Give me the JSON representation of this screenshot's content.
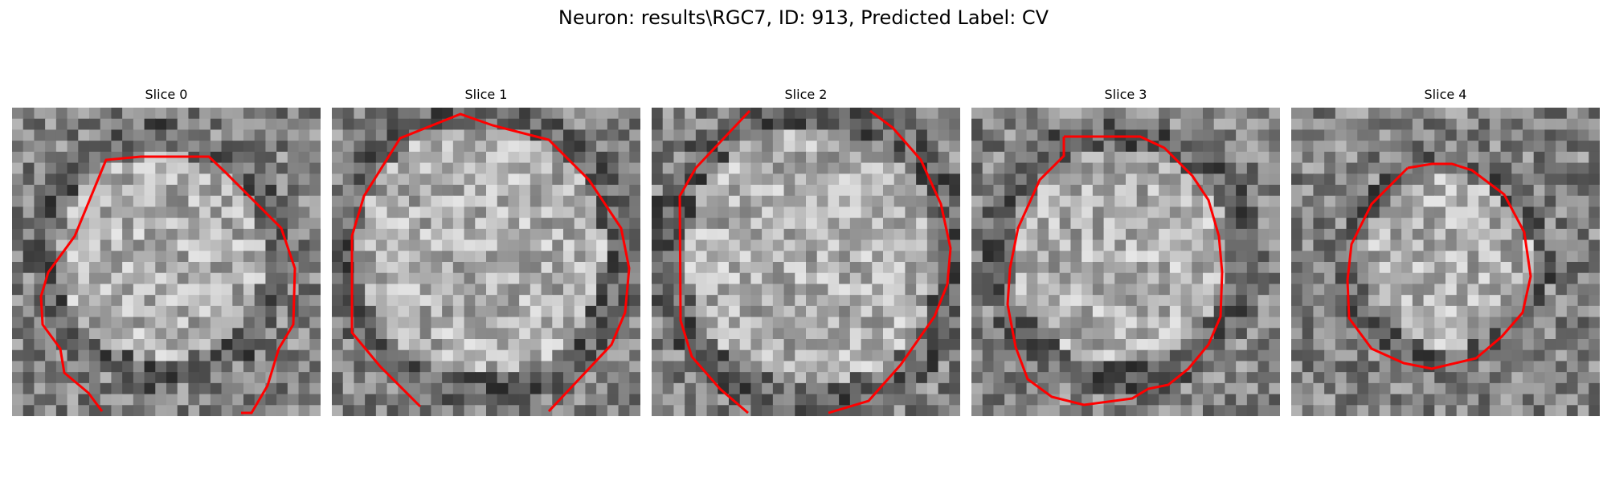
{
  "figure": {
    "title": "Neuron: results\\RGC7, ID: 913, Predicted Label: CV"
  },
  "panels": [
    {
      "label": "Slice 0"
    },
    {
      "label": "Slice 1"
    },
    {
      "label": "Slice 2"
    },
    {
      "label": "Slice 3"
    },
    {
      "label": "Slice 4"
    }
  ],
  "colors": {
    "contour": "#ff0000"
  }
}
